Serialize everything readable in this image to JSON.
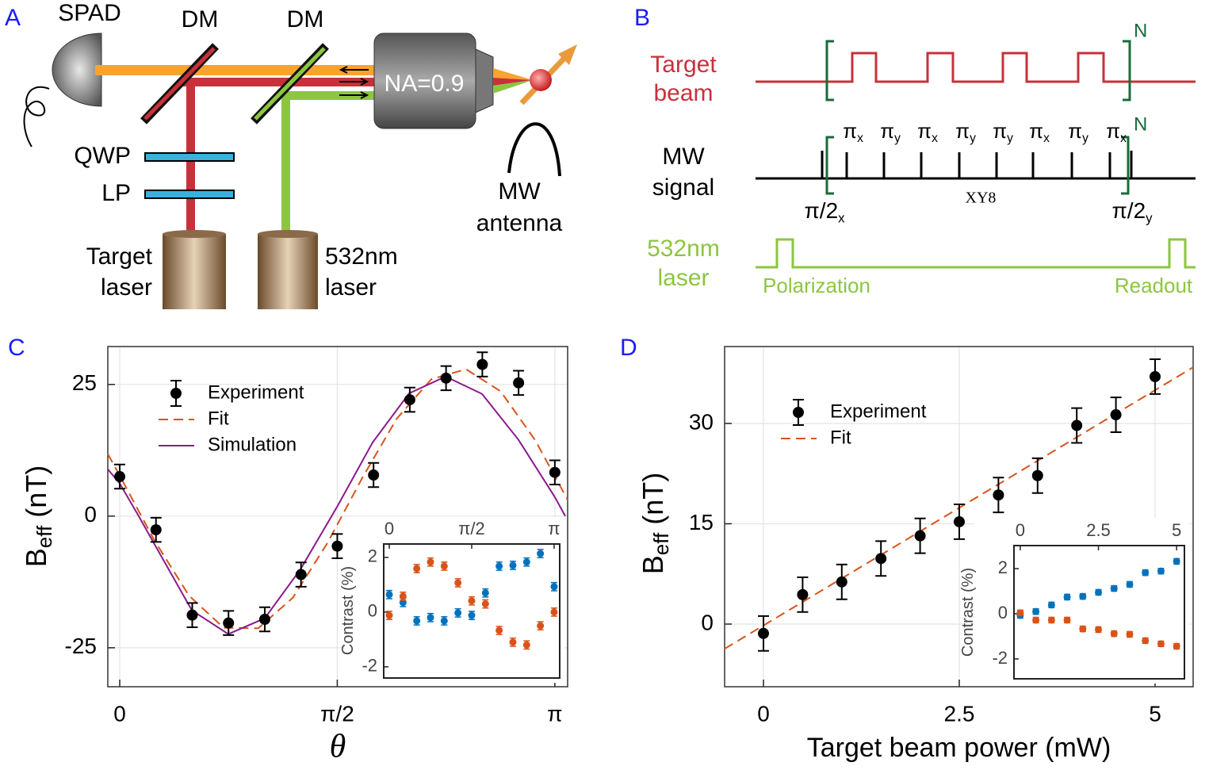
{
  "diagram_a": {
    "label": "A",
    "spad": "SPAD",
    "dm": [
      "DM",
      "DM"
    ],
    "qwp": "QWP",
    "lp": "LP",
    "target_laser": [
      "Target",
      "laser"
    ],
    "green_laser": [
      "532nm",
      "laser"
    ],
    "objective": "NA=0.9",
    "mw_antenna": [
      "MW",
      "antenna"
    ]
  },
  "diagram_b": {
    "label": "B",
    "rows": [
      [
        "Target",
        "beam"
      ],
      [
        "MW",
        "signal"
      ],
      [
        "532nm",
        "laser"
      ]
    ],
    "repeat": [
      "N",
      "N"
    ],
    "pulses": [
      {
        "symbol": "π",
        "sub": "x"
      },
      {
        "symbol": "π",
        "sub": "y"
      },
      {
        "symbol": "π",
        "sub": "x"
      },
      {
        "symbol": "π",
        "sub": "y"
      },
      {
        "symbol": "π",
        "sub": "y"
      },
      {
        "symbol": "π",
        "sub": "x"
      },
      {
        "symbol": "π",
        "sub": "y"
      },
      {
        "symbol": "π",
        "sub": "x"
      }
    ],
    "start": {
      "symbol": "π/2",
      "sub": "x"
    },
    "end": {
      "symbol": "π/2",
      "sub": "y"
    },
    "sequence": "XY8",
    "polarization": "Polarization",
    "readout": "Readout"
  },
  "chart_data": [
    {
      "type": "scatter",
      "label": "C",
      "xlabel": "θ",
      "ylabel": "B",
      "ylabel_sub": "eff",
      "ylabel_unit": "(nT)",
      "xlim": [
        -0.086,
        3.234
      ],
      "ylim": [
        -32.4,
        32.2
      ],
      "xticks": [
        0,
        {
          "value": 1.5708,
          "label": "π/2"
        },
        {
          "value": 3.1416,
          "label": "π"
        }
      ],
      "yticks": [
        -25,
        0,
        25
      ],
      "grid": true,
      "legend": "upper left",
      "series": [
        {
          "name": "Experiment",
          "color": "#000000",
          "kind": "errorbar",
          "x": [
            0,
            0.2618,
            0.5236,
            0.7854,
            1.0472,
            1.309,
            1.5708,
            1.8326,
            2.0944,
            2.3562,
            2.618,
            2.8798,
            3.1416
          ],
          "values": [
            7.5,
            -2.6,
            -18.8,
            -20.3,
            -19.6,
            -11.1,
            -5.7,
            7.8,
            22.1,
            26.2,
            28.8,
            25.3,
            8.3
          ],
          "errors": [
            2.3,
            2.3,
            2.3,
            2.3,
            2.3,
            2.3,
            2.3,
            2.3,
            2.3,
            2.3,
            2.3,
            2.3,
            2.3
          ]
        },
        {
          "name": "Fit",
          "color": "#d9541a",
          "kind": "dashed",
          "x": [
            -0.086,
            0,
            0.25,
            0.5,
            0.75,
            1.0,
            1.25,
            1.5,
            1.75,
            2.0,
            2.25,
            2.5,
            2.75,
            3.0,
            3.234
          ],
          "values": [
            11.8,
            7.7,
            -4.6,
            -15.1,
            -21.2,
            -21.3,
            -15.5,
            -5.1,
            7.2,
            18.5,
            26.0,
            27.9,
            23.7,
            14.4,
            3.1
          ]
        },
        {
          "name": "Simulation",
          "color": "#8b1a8b",
          "kind": "line",
          "x": [
            -0.086,
            0,
            0.137,
            0.263,
            0.521,
            0.784,
            1.047,
            1.305,
            1.568,
            1.826,
            2.089,
            2.353,
            2.616,
            2.879,
            3.142,
            3.217
          ],
          "values": [
            8.9,
            6.2,
            0,
            -5.9,
            -17.9,
            -22.4,
            -19.4,
            -10.1,
            1.7,
            14,
            23.3,
            26.5,
            23.2,
            14.5,
            3.6,
            0
          ]
        }
      ]
    },
    {
      "type": "scatter",
      "label": "D",
      "xlabel": "Target beam power (mW)",
      "ylabel": "B",
      "ylabel_sub": "eff",
      "ylabel_unit": "(nT)",
      "xlim": [
        -0.496,
        5.486
      ],
      "ylim": [
        -9.37,
        41.5
      ],
      "xticks": [
        0,
        2.5,
        5
      ],
      "yticks": [
        0,
        15,
        30
      ],
      "grid": true,
      "legend": "upper left",
      "series": [
        {
          "name": "Experiment",
          "color": "#000000",
          "kind": "errorbar",
          "x": [
            0,
            0.5,
            1,
            1.5,
            2,
            2.5,
            3,
            3.5,
            4,
            4.5,
            5
          ],
          "values": [
            -1.4,
            4.4,
            6.3,
            9.8,
            13.2,
            15.3,
            19.3,
            22.2,
            29.7,
            31.3,
            37
          ],
          "errors": [
            2.6,
            2.6,
            2.6,
            2.6,
            2.6,
            2.6,
            2.6,
            2.6,
            2.6,
            2.6,
            2.6
          ]
        },
        {
          "name": "Fit",
          "color": "#d9541a",
          "kind": "dashed",
          "x": [
            -0.496,
            5.486
          ],
          "values": [
            -3.7,
            38.4
          ]
        }
      ]
    },
    {
      "type": "scatter",
      "ylabel": "Contrast (%)",
      "xaxis": "top",
      "xlim": [
        -0.106,
        3.248
      ],
      "ylim": [
        -2.41,
        2.49
      ],
      "xticks": [
        0,
        {
          "value": 1.5708,
          "label": "π/2"
        },
        {
          "value": 3.1416,
          "label": "π"
        }
      ],
      "yticks": [
        -2,
        0,
        2
      ],
      "series": [
        {
          "color": "#0072bd",
          "kind": "errorbar",
          "x": [
            0,
            0.2618,
            0.5236,
            0.7854,
            1.0472,
            1.309,
            1.5708,
            1.8326,
            2.0944,
            2.3562,
            2.618,
            2.8798,
            3.1416
          ],
          "values": [
            0.64,
            0.35,
            -0.32,
            -0.2,
            -0.32,
            -0.03,
            -0.12,
            0.7,
            1.68,
            1.71,
            1.83,
            2.14,
            0.93
          ],
          "errors": [
            0.15,
            0.15,
            0.15,
            0.15,
            0.15,
            0.15,
            0.15,
            0.15,
            0.15,
            0.15,
            0.15,
            0.15,
            0.15
          ]
        },
        {
          "color": "#d95319",
          "kind": "errorbar",
          "x": [
            0,
            0.2618,
            0.5236,
            0.7854,
            1.0472,
            1.309,
            1.5708,
            1.8326,
            2.0944,
            2.3562,
            2.618,
            2.8798,
            3.1416
          ],
          "values": [
            -0.12,
            0.58,
            1.59,
            1.83,
            1.68,
            1.07,
            0.41,
            0.3,
            -0.67,
            -1.1,
            -1.2,
            -0.5,
            0.0
          ],
          "errors": [
            0.15,
            0.15,
            0.15,
            0.15,
            0.15,
            0.15,
            0.15,
            0.15,
            0.15,
            0.15,
            0.15,
            0.15,
            0.15
          ]
        }
      ]
    },
    {
      "type": "scatter",
      "ylabel": "Contrast (%)",
      "xaxis": "top",
      "xlim": [
        -0.2,
        5.25
      ],
      "ylim": [
        -2.88,
        3.02
      ],
      "xticks": [
        0,
        2.5,
        5
      ],
      "yticks": [
        -2,
        0,
        2
      ],
      "series": [
        {
          "color": "#0072bd",
          "kind": "errorbar",
          "x": [
            0,
            0.5,
            1,
            1.5,
            2,
            2.5,
            3,
            3.5,
            4,
            4.5,
            5
          ],
          "values": [
            -0.07,
            0.1,
            0.39,
            0.74,
            0.77,
            0.95,
            1.12,
            1.3,
            1.82,
            1.89,
            2.32
          ],
          "errors": [
            0.12,
            0.12,
            0.12,
            0.12,
            0.12,
            0.12,
            0.12,
            0.12,
            0.12,
            0.12,
            0.12
          ]
        },
        {
          "color": "#d95319",
          "kind": "errorbar",
          "x": [
            0,
            0.5,
            1,
            1.5,
            2,
            2.5,
            3,
            3.5,
            4,
            4.5,
            5
          ],
          "values": [
            0.04,
            -0.28,
            -0.28,
            -0.28,
            -0.67,
            -0.7,
            -0.88,
            -0.91,
            -1.19,
            -1.33,
            -1.44
          ],
          "errors": [
            0.12,
            0.12,
            0.12,
            0.12,
            0.12,
            0.12,
            0.12,
            0.12,
            0.12,
            0.12,
            0.12
          ]
        }
      ]
    }
  ]
}
